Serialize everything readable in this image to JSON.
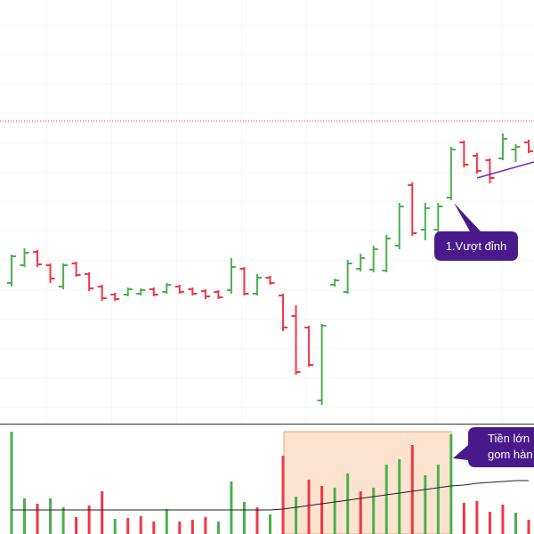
{
  "chart_data": [
    {
      "type": "ohlc",
      "ylim": [
        0,
        480
      ],
      "up_color": "#4caf50",
      "down_color": "#f23645",
      "reference_line": 344,
      "open": [
        162,
        182,
        197,
        182,
        158,
        184,
        172,
        158,
        149,
        149,
        150,
        155,
        152,
        158,
        155,
        153,
        152,
        154,
        178,
        150,
        168,
        148,
        125,
        112,
        30,
        160,
        152,
        178,
        177,
        176,
        204,
        272,
        222,
        222,
        258,
        320,
        305,
        300,
        302,
        312,
        320
      ],
      "high": [
        194,
        201,
        199,
        184,
        184,
        186,
        174,
        160,
        151,
        157,
        156,
        157,
        162,
        160,
        157,
        155,
        154,
        190,
        180,
        172,
        170,
        150,
        137,
        114,
        116,
        167,
        188,
        195,
        204,
        216,
        252,
        275,
        252,
        252,
        315,
        322,
        308,
        302,
        330,
        318,
        323
      ],
      "low": [
        158,
        180,
        180,
        162,
        155,
        169,
        153,
        142,
        142,
        147,
        148,
        147,
        150,
        150,
        148,
        144,
        144,
        150,
        148,
        148,
        160,
        108,
        59,
        68,
        25,
        158,
        150,
        175,
        174,
        174,
        200,
        215,
        210,
        218,
        255,
        292,
        285,
        274,
        300,
        298,
        308
      ],
      "close": [
        192,
        196,
        183,
        167,
        182,
        171,
        156,
        145,
        144,
        155,
        154,
        149,
        160,
        152,
        150,
        147,
        146,
        180,
        150,
        168,
        162,
        112,
        62,
        70,
        114,
        165,
        184,
        190,
        200,
        212,
        248,
        218,
        246,
        248,
        312,
        295,
        288,
        280,
        324,
        315,
        310
      ],
      "annotations": [
        "1.Vượt đỉnh"
      ]
    },
    {
      "type": "bar",
      "ylim": [
        0,
        124
      ],
      "values": [
        115,
        40,
        34,
        40,
        30,
        19,
        32,
        48,
        17,
        18,
        20,
        14,
        28,
        14,
        16,
        19,
        14,
        59,
        36,
        30,
        22,
        88,
        42,
        61,
        54,
        52,
        68,
        48,
        52,
        78,
        84,
        100,
        66,
        78,
        112,
        35,
        37,
        25,
        33,
        24,
        16
      ],
      "colors": [
        "#4caf50",
        "#4caf50",
        "#f23645",
        "#4caf50",
        "#4caf50",
        "#f23645",
        "#f23645",
        "#f23645",
        "#4caf50",
        "#f23645",
        "#f23645",
        "#f23645",
        "#4caf50",
        "#f23645",
        "#f23645",
        "#f23645",
        "#4caf50",
        "#4caf50",
        "#4caf50",
        "#f23645",
        "#4caf50",
        "#f23645",
        "#4caf50",
        "#f23645",
        "#f23645",
        "#4caf50",
        "#4caf50",
        "#f23645",
        "#4caf50",
        "#4caf50",
        "#4caf50",
        "#f23645",
        "#4caf50",
        "#4caf50",
        "#4caf50",
        "#f23645",
        "#f23645",
        "#f23645",
        "#f23645",
        "#4caf50",
        "#f23645"
      ],
      "line": {
        "color": "#222222",
        "values": [
          27,
          27,
          27,
          27,
          27,
          27,
          27,
          27,
          27,
          27,
          27,
          27,
          27,
          27,
          27,
          27,
          27,
          27,
          27,
          27,
          27,
          28,
          30,
          32,
          34,
          36,
          38,
          40,
          42,
          44,
          46,
          48,
          50,
          52,
          54,
          55,
          57,
          58,
          59,
          60,
          60
        ]
      },
      "annotations": [
        "Tiền lớn",
        "gom hàn"
      ]
    }
  ]
}
